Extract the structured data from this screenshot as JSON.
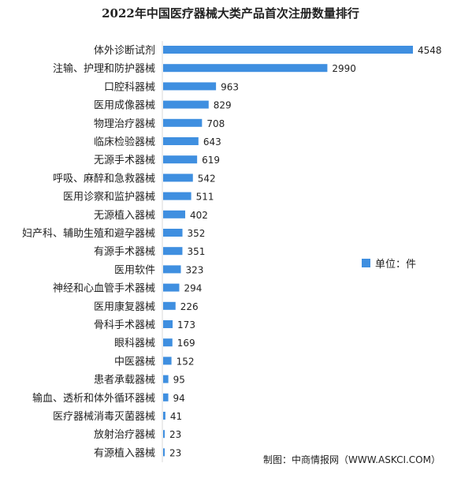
{
  "chart_data": {
    "type": "bar",
    "orientation": "horizontal",
    "title": "2022年中国医疗器械大类产品首次注册数量排行",
    "legend": {
      "label": "单位：件",
      "placement": "right"
    },
    "source": "制图：中商情报网（WWW.ASKCI.COM）",
    "bar_color": "#3f8fe0",
    "xlim": [
      0,
      4548
    ],
    "categories": [
      "体外诊断试剂",
      "注输、护理和防护器械",
      "口腔科器械",
      "医用成像器械",
      "物理治疗器械",
      "临床检验器械",
      "无源手术器械",
      "呼吸、麻醉和急救器械",
      "医用诊察和监护器械",
      "无源植入器械",
      "妇产科、辅助生殖和避孕器械",
      "有源手术器械",
      "医用软件",
      "神经和心血管手术器械",
      "医用康复器械",
      "骨科手术器械",
      "眼科器械",
      "中医器械",
      "患者承载器械",
      "输血、透析和体外循环器械",
      "医疗器械消毒灭菌器械",
      "放射治疗器械",
      "有源植入器械"
    ],
    "values": [
      4548,
      2990,
      963,
      829,
      708,
      643,
      619,
      542,
      511,
      402,
      352,
      351,
      323,
      294,
      226,
      173,
      169,
      152,
      95,
      94,
      41,
      23,
      23
    ]
  }
}
